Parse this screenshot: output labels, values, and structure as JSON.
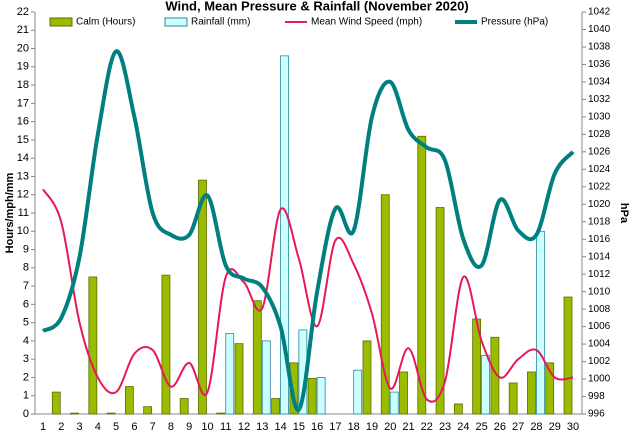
{
  "chart_data": {
    "type": "combo",
    "title": "Wind, Mean Pressure & Rainfall (November 2020)",
    "ylabel": "Hours/mph/mm",
    "y2label": "hPa",
    "categories": [
      "1",
      "2",
      "3",
      "4",
      "5",
      "6",
      "7",
      "8",
      "9",
      "10",
      "11",
      "12",
      "13",
      "14",
      "15",
      "16",
      "17",
      "18",
      "19",
      "20",
      "21",
      "22",
      "23",
      "24",
      "25",
      "26",
      "27",
      "28",
      "29",
      "30"
    ],
    "series": [
      {
        "name": "Calm (Hours)",
        "kind": "bar",
        "color": "#99bb00",
        "values": [
          0,
          1.2,
          0.05,
          7.5,
          0.05,
          1.5,
          0.4,
          7.6,
          0.85,
          12.8,
          0.05,
          3.85,
          6.2,
          0.85,
          2.8,
          1.95,
          0,
          0,
          4.0,
          12.0,
          2.3,
          15.2,
          11.3,
          0.55,
          5.2,
          4.2,
          1.7,
          2.3,
          2.8,
          6.4
        ]
      },
      {
        "name": "Rainfall (mm)",
        "kind": "bar",
        "color": "#ccffff",
        "values": [
          0,
          0,
          0,
          0,
          0,
          0,
          0,
          0,
          0,
          0,
          4.4,
          0,
          4.0,
          19.6,
          4.6,
          2.0,
          0,
          2.4,
          0,
          1.2,
          0,
          0,
          0,
          0,
          3.2,
          0,
          0,
          10.0,
          0,
          0
        ]
      },
      {
        "name": "Mean Wind Speed (mph)",
        "kind": "line",
        "color": "#e8175d",
        "values": [
          12.3,
          10.5,
          5,
          2,
          1.2,
          3.3,
          3.5,
          1.5,
          2.8,
          1.2,
          7.5,
          7.2,
          5.8,
          11.2,
          8.5,
          4.8,
          9.5,
          8.2,
          5.5,
          1.4,
          3.6,
          0.8,
          1.8,
          7.5,
          4.0,
          2.0,
          3.0,
          3.5,
          2.0,
          2.0
        ]
      },
      {
        "name": "Pressure (hPa)",
        "kind": "line",
        "axis": "y2",
        "color": "#007f80",
        "values": [
          1005.5,
          1007,
          1014,
          1028,
          1037.5,
          1030,
          1019,
          1016.5,
          1016.5,
          1021,
          1013,
          1011.5,
          1010.5,
          1006,
          996.5,
          1010,
          1019.5,
          1017,
          1030,
          1034,
          1028.5,
          1026.5,
          1025,
          1016,
          1013,
          1020.5,
          1017,
          1016.5,
          1023.5,
          1026
        ]
      }
    ],
    "ylim": [
      0,
      22
    ],
    "yticks": [
      0,
      1,
      2,
      3,
      4,
      5,
      6,
      7,
      8,
      9,
      10,
      11,
      12,
      13,
      14,
      15,
      16,
      17,
      18,
      19,
      20,
      21,
      22
    ],
    "y2lim": [
      996,
      1042
    ],
    "y2ticks": [
      996,
      998,
      1000,
      1002,
      1004,
      1006,
      1008,
      1010,
      1012,
      1014,
      1016,
      1018,
      1020,
      1022,
      1024,
      1026,
      1028,
      1030,
      1032,
      1034,
      1036,
      1038,
      1040,
      1042
    ],
    "grid": false
  }
}
